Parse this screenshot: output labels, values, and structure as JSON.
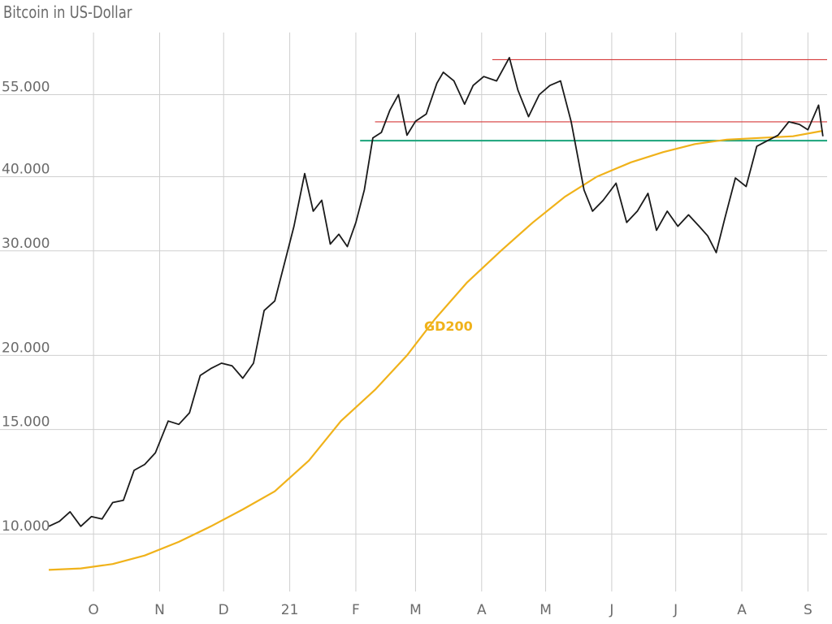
{
  "chart_data": {
    "type": "line",
    "title": "Bitcoin in US-Dollar",
    "y_scale": "log",
    "ylim": [
      8000,
      70000
    ],
    "y_ticks": [
      10000,
      15000,
      20000,
      30000,
      40000,
      55000
    ],
    "y_tick_labels": [
      "10.000",
      "15.000",
      "20.000",
      "30.000",
      "40.000",
      "55.000"
    ],
    "x_range": [
      "2020-09-10",
      "2021-09-10"
    ],
    "x_ticks": [
      "2020-10-01",
      "2020-11-01",
      "2020-12-01",
      "2021-01-01",
      "2021-02-01",
      "2021-03-01",
      "2021-04-01",
      "2021-05-01",
      "2021-06-01",
      "2021-07-01",
      "2021-08-01",
      "2021-09-01"
    ],
    "x_tick_labels": [
      "O",
      "N",
      "D",
      "21",
      "F",
      "M",
      "A",
      "M",
      "J",
      "J",
      "A",
      "S"
    ],
    "grid": true,
    "colors": {
      "price": "#1a1a1a",
      "gd200": "#f0b21a",
      "resistance": "#d63a3a",
      "support": "#1aa37a",
      "grid": "#cfcfcf",
      "text": "#6b6b6b"
    },
    "annotations": [
      {
        "text": "GD200",
        "x": "2021-03-05",
        "y": 22000
      }
    ],
    "reference_lines": [
      {
        "name": "resistance",
        "y": 63000,
        "x_start": "2021-04-06",
        "x_end": "2021-09-10",
        "color": "#d63a3a"
      },
      {
        "name": "resistance",
        "y": 49500,
        "x_start": "2021-02-10",
        "x_end": "2021-09-10",
        "color": "#d63a3a"
      },
      {
        "name": "support",
        "y": 46000,
        "x_start": "2021-02-03",
        "x_end": "2021-09-10",
        "color": "#1aa37a"
      }
    ],
    "series": [
      {
        "name": "Price",
        "color": "#1a1a1a",
        "x": [
          "2020-09-10",
          "2020-09-15",
          "2020-09-20",
          "2020-09-25",
          "2020-09-30",
          "2020-10-05",
          "2020-10-10",
          "2020-10-15",
          "2020-10-20",
          "2020-10-25",
          "2020-10-30",
          "2020-11-05",
          "2020-11-10",
          "2020-11-15",
          "2020-11-20",
          "2020-11-25",
          "2020-11-30",
          "2020-12-05",
          "2020-12-10",
          "2020-12-15",
          "2020-12-20",
          "2020-12-25",
          "2020-12-30",
          "2021-01-03",
          "2021-01-08",
          "2021-01-12",
          "2021-01-16",
          "2021-01-20",
          "2021-01-24",
          "2021-01-28",
          "2021-02-01",
          "2021-02-05",
          "2021-02-09",
          "2021-02-13",
          "2021-02-17",
          "2021-02-21",
          "2021-02-25",
          "2021-03-01",
          "2021-03-06",
          "2021-03-11",
          "2021-03-14",
          "2021-03-19",
          "2021-03-24",
          "2021-03-28",
          "2021-04-02",
          "2021-04-08",
          "2021-04-14",
          "2021-04-18",
          "2021-04-23",
          "2021-04-28",
          "2021-05-03",
          "2021-05-08",
          "2021-05-13",
          "2021-05-19",
          "2021-05-23",
          "2021-05-28",
          "2021-06-03",
          "2021-06-08",
          "2021-06-13",
          "2021-06-18",
          "2021-06-22",
          "2021-06-27",
          "2021-07-02",
          "2021-07-07",
          "2021-07-12",
          "2021-07-16",
          "2021-07-20",
          "2021-07-24",
          "2021-07-29",
          "2021-08-03",
          "2021-08-08",
          "2021-08-13",
          "2021-08-18",
          "2021-08-23",
          "2021-08-28",
          "2021-09-01",
          "2021-09-06",
          "2021-09-08"
        ],
        "y": [
          10300,
          10500,
          10900,
          10300,
          10700,
          10600,
          11300,
          11400,
          12800,
          13100,
          13700,
          15500,
          15300,
          16000,
          18500,
          19000,
          19400,
          19200,
          18300,
          19400,
          23800,
          24700,
          29000,
          33000,
          40500,
          35000,
          36500,
          30800,
          32000,
          30500,
          33500,
          38000,
          46500,
          47500,
          51800,
          55000,
          47000,
          49600,
          51000,
          57500,
          60000,
          58000,
          53000,
          57000,
          59000,
          58000,
          63500,
          56000,
          50500,
          55000,
          57000,
          58000,
          49500,
          38000,
          35000,
          36500,
          39000,
          33500,
          35000,
          37500,
          32500,
          35000,
          33000,
          34500,
          33000,
          31800,
          29800,
          34000,
          39800,
          38500,
          45000,
          46000,
          47000,
          49500,
          49000,
          48000,
          52800,
          46800
        ]
      },
      {
        "name": "GD200",
        "color": "#f0b21a",
        "x": [
          "2020-09-10",
          "2020-09-25",
          "2020-10-10",
          "2020-10-25",
          "2020-11-10",
          "2020-11-25",
          "2020-12-10",
          "2020-12-25",
          "2021-01-10",
          "2021-01-25",
          "2021-02-10",
          "2021-02-25",
          "2021-03-10",
          "2021-03-25",
          "2021-04-10",
          "2021-04-25",
          "2021-05-10",
          "2021-05-25",
          "2021-06-10",
          "2021-06-25",
          "2021-07-10",
          "2021-07-25",
          "2021-08-10",
          "2021-08-25",
          "2021-09-08"
        ],
        "y": [
          8700,
          8750,
          8900,
          9200,
          9700,
          10300,
          11000,
          11800,
          13300,
          15500,
          17500,
          20000,
          23000,
          26500,
          30000,
          33500,
          37000,
          40000,
          42300,
          44000,
          45400,
          46200,
          46500,
          46800,
          47800
        ]
      }
    ]
  }
}
